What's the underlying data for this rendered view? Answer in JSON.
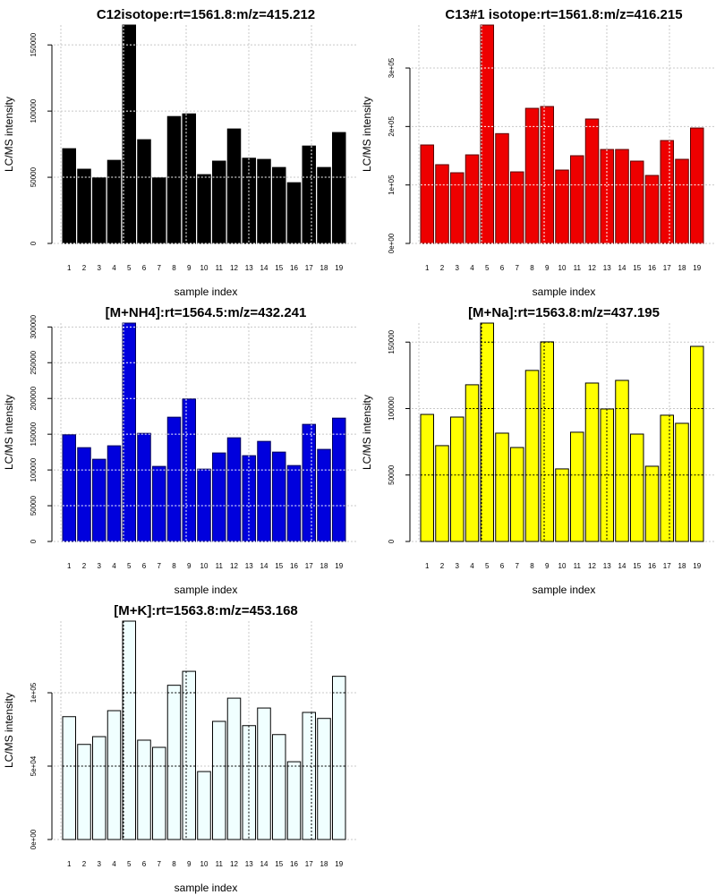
{
  "chart_data": [
    {
      "type": "bar",
      "title": "C12isotope:rt=1561.8:m/z=415.212",
      "xlabel": "sample index",
      "ylabel": "LC/MS intensity",
      "categories": [
        "1",
        "2",
        "3",
        "4",
        "5",
        "6",
        "7",
        "8",
        "9",
        "10",
        "11",
        "12",
        "13",
        "14",
        "15",
        "16",
        "17",
        "18",
        "19"
      ],
      "values": [
        71600,
        56100,
        49500,
        62800,
        165000,
        78400,
        49500,
        95900,
        97900,
        52000,
        62200,
        86500,
        64400,
        63500,
        57400,
        45900,
        73600,
        57400,
        83800
      ],
      "yticks": [
        0,
        50000,
        100000,
        150000
      ],
      "ytick_labels": [
        "0",
        "50000",
        "100000",
        "150000"
      ],
      "ylim": [
        0,
        165000
      ],
      "grid": true,
      "bar_color": "#000000",
      "bar_border": "#000000"
    },
    {
      "type": "bar",
      "title": "C13#1 isotope:rt=1561.8:m/z=416.215",
      "xlabel": "sample index",
      "ylabel": "LC/MS intensity",
      "categories": [
        "1",
        "2",
        "3",
        "4",
        "5",
        "6",
        "7",
        "8",
        "9",
        "10",
        "11",
        "12",
        "13",
        "14",
        "15",
        "16",
        "17",
        "18",
        "19"
      ],
      "values": [
        168400,
        134700,
        120900,
        151500,
        373500,
        187800,
        122400,
        231100,
        234200,
        125500,
        150000,
        212800,
        160700,
        160700,
        140800,
        116300,
        176000,
        143900,
        197400
      ],
      "yticks": [
        0,
        100000,
        200000,
        300000
      ],
      "ytick_labels": [
        "0e+00",
        "1e+05",
        "2e+05",
        "3e+05"
      ],
      "ylim": [
        0,
        373500
      ],
      "grid": true,
      "bar_color": "#ee0000",
      "bar_border": "#5a0000"
    },
    {
      "type": "bar",
      "title": "[M+NH4]:rt=1564.5:m/z=432.241",
      "xlabel": "sample index",
      "ylabel": "LC/MS intensity",
      "categories": [
        "1",
        "2",
        "3",
        "4",
        "5",
        "6",
        "7",
        "8",
        "9",
        "10",
        "11",
        "12",
        "13",
        "14",
        "15",
        "16",
        "17",
        "18",
        "19"
      ],
      "values": [
        149200,
        131200,
        115000,
        133800,
        305400,
        151200,
        105000,
        173800,
        199200,
        101200,
        123800,
        145000,
        120000,
        140000,
        125000,
        106200,
        163800,
        128800,
        172500
      ],
      "yticks": [
        0,
        50000,
        100000,
        150000,
        200000,
        250000,
        300000
      ],
      "ytick_labels": [
        "0",
        "50000",
        "100000",
        "150000",
        "200000",
        "250000",
        "300000"
      ],
      "ylim": [
        0,
        305400
      ],
      "grid": true,
      "bar_color": "#0000dd",
      "bar_border": "#00005a"
    },
    {
      "type": "bar",
      "title": "[M+Na]:rt=1563.8:m/z=437.195",
      "xlabel": "sample index",
      "ylabel": "LC/MS intensity",
      "categories": [
        "1",
        "2",
        "3",
        "4",
        "5",
        "6",
        "7",
        "8",
        "9",
        "10",
        "11",
        "12",
        "13",
        "14",
        "15",
        "16",
        "17",
        "18",
        "19"
      ],
      "values": [
        95600,
        72100,
        93600,
        117900,
        164300,
        81500,
        70700,
        128700,
        150200,
        54600,
        82200,
        119200,
        99700,
        121200,
        80800,
        56600,
        95000,
        88900,
        146800
      ],
      "yticks": [
        0,
        50000,
        100000,
        150000
      ],
      "ytick_labels": [
        "0",
        "50000",
        "100000",
        "150000"
      ],
      "ylim": [
        0,
        164300
      ],
      "grid": true,
      "bar_color": "#ffff00",
      "bar_border": "#000000"
    },
    {
      "type": "bar",
      "title": "[M+K]:rt=1563.8:m/z=453.168",
      "xlabel": "sample index",
      "ylabel": "LC/MS intensity",
      "categories": [
        "1",
        "2",
        "3",
        "4",
        "5",
        "6",
        "7",
        "8",
        "9",
        "10",
        "11",
        "12",
        "13",
        "14",
        "15",
        "16",
        "17",
        "18",
        "19"
      ],
      "values": [
        83700,
        64800,
        70100,
        87800,
        148800,
        67700,
        62800,
        105100,
        114600,
        46300,
        80500,
        96300,
        77600,
        89600,
        71500,
        53000,
        86600,
        82500,
        111200
      ],
      "yticks": [
        0,
        50000,
        100000
      ],
      "ytick_labels": [
        "0e+00",
        "5e+04",
        "1e+05"
      ],
      "ylim": [
        0,
        148800
      ],
      "grid": true,
      "bar_color": "#f0ffff",
      "bar_border": "#000000"
    }
  ]
}
